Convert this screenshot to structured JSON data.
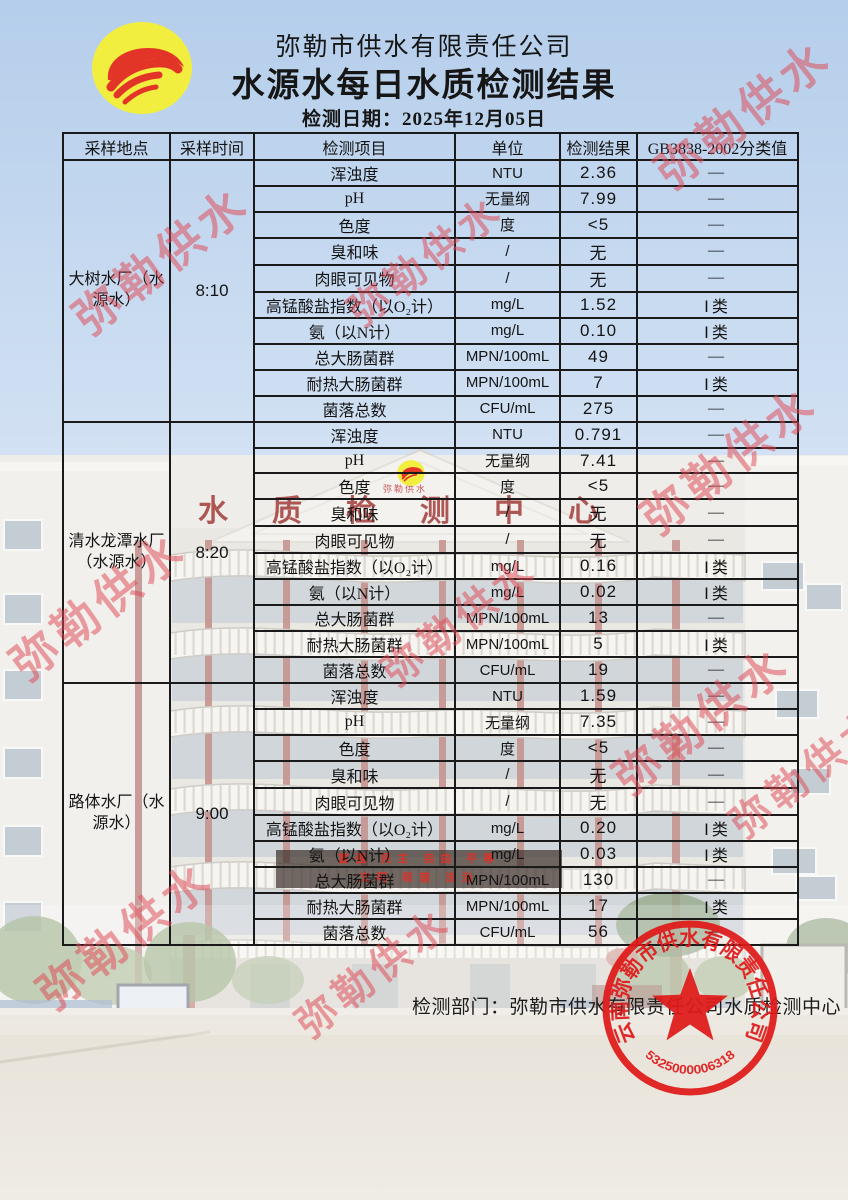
{
  "page": {
    "company_name": "弥勒市供水有限责任公司",
    "report_title": "水源水每日水质检测结果",
    "date_line": "检测日期：2025年12月05日",
    "footer_department": "检测部门：弥勒市供水有限责任公司水质检测中心",
    "watermark_text": "弥勒供水",
    "accent_red": "#e01a1a",
    "logo_yellow": "#f2ee3f",
    "logo_wave_red": "#e23528"
  },
  "background_photo": {
    "building_sign": "水质检测中心",
    "gable_text": "弥勒供水",
    "led_line1": "富强 民主 自由 平等",
    "led_line2": "文明 和谐 法治"
  },
  "table": {
    "headers": [
      "采样地点",
      "采样时间",
      "检测项目",
      "单位",
      "检测结果",
      "GB3838-2002分类值"
    ],
    "blocks": [
      {
        "location": "大树水厂（水源水）",
        "time": "8:10",
        "rows": [
          {
            "item": "浑浊度",
            "unit": "NTU",
            "result": "2.36",
            "grade": "—"
          },
          {
            "item": "pH",
            "unit": "无量纲",
            "result": "7.99",
            "grade": "—"
          },
          {
            "item": "色度",
            "unit": "度",
            "result": "<5",
            "grade": "—"
          },
          {
            "item": "臭和味",
            "unit": "/",
            "result": "无",
            "grade": "—"
          },
          {
            "item": "肉眼可见物",
            "unit": "/",
            "result": "无",
            "grade": "—"
          },
          {
            "item": "高锰酸盐指数（以O₂计）",
            "unit": "mg/L",
            "result": "1.52",
            "grade": "Ⅰ类"
          },
          {
            "item": "氨（以N计）",
            "unit": "mg/L",
            "result": "0.10",
            "grade": "Ⅰ类"
          },
          {
            "item": "总大肠菌群",
            "unit": "MPN/100mL",
            "result": "49",
            "grade": "—"
          },
          {
            "item": "耐热大肠菌群",
            "unit": "MPN/100mL",
            "result": "7",
            "grade": "Ⅰ类"
          },
          {
            "item": "菌落总数",
            "unit": "CFU/mL",
            "result": "275",
            "grade": "—"
          }
        ]
      },
      {
        "location": "清水龙潭水厂（水源水）",
        "time": "8:20",
        "rows": [
          {
            "item": "浑浊度",
            "unit": "NTU",
            "result": "0.791",
            "grade": "—"
          },
          {
            "item": "pH",
            "unit": "无量纲",
            "result": "7.41",
            "grade": "—"
          },
          {
            "item": "色度",
            "unit": "度",
            "result": "<5",
            "grade": "—"
          },
          {
            "item": "臭和味",
            "unit": "/",
            "result": "无",
            "grade": "—"
          },
          {
            "item": "肉眼可见物",
            "unit": "/",
            "result": "无",
            "grade": "—"
          },
          {
            "item": "高锰酸盐指数（以O₂计）",
            "unit": "mg/L",
            "result": "0.16",
            "grade": "Ⅰ类"
          },
          {
            "item": "氨（以N计）",
            "unit": "mg/L",
            "result": "0.02",
            "grade": "Ⅰ类"
          },
          {
            "item": "总大肠菌群",
            "unit": "MPN/100mL",
            "result": "13",
            "grade": "—"
          },
          {
            "item": "耐热大肠菌群",
            "unit": "MPN/100mL",
            "result": "5",
            "grade": "Ⅰ类"
          },
          {
            "item": "菌落总数",
            "unit": "CFU/mL",
            "result": "19",
            "grade": "—"
          }
        ]
      },
      {
        "location": "路体水厂（水源水）",
        "time": "9:00",
        "rows": [
          {
            "item": "浑浊度",
            "unit": "NTU",
            "result": "1.59",
            "grade": "—"
          },
          {
            "item": "pH",
            "unit": "无量纲",
            "result": "7.35",
            "grade": "—"
          },
          {
            "item": "色度",
            "unit": "度",
            "result": "<5",
            "grade": "—"
          },
          {
            "item": "臭和味",
            "unit": "/",
            "result": "无",
            "grade": "—"
          },
          {
            "item": "肉眼可见物",
            "unit": "/",
            "result": "无",
            "grade": "—"
          },
          {
            "item": "高锰酸盐指数（以O₂计）",
            "unit": "mg/L",
            "result": "0.20",
            "grade": "Ⅰ类"
          },
          {
            "item": "氨（以N计）",
            "unit": "mg/L",
            "result": "0.03",
            "grade": "Ⅰ类"
          },
          {
            "item": "总大肠菌群",
            "unit": "MPN/100mL",
            "result": "130",
            "grade": "—"
          },
          {
            "item": "耐热大肠菌群",
            "unit": "MPN/100mL",
            "result": "17",
            "grade": "Ⅰ类"
          },
          {
            "item": "菌落总数",
            "unit": "CFU/mL",
            "result": "56",
            "grade": "—"
          }
        ]
      }
    ]
  },
  "stamp": {
    "ring_text": "云南弥勒市供水有限责任公司",
    "number": "5325000006318"
  }
}
